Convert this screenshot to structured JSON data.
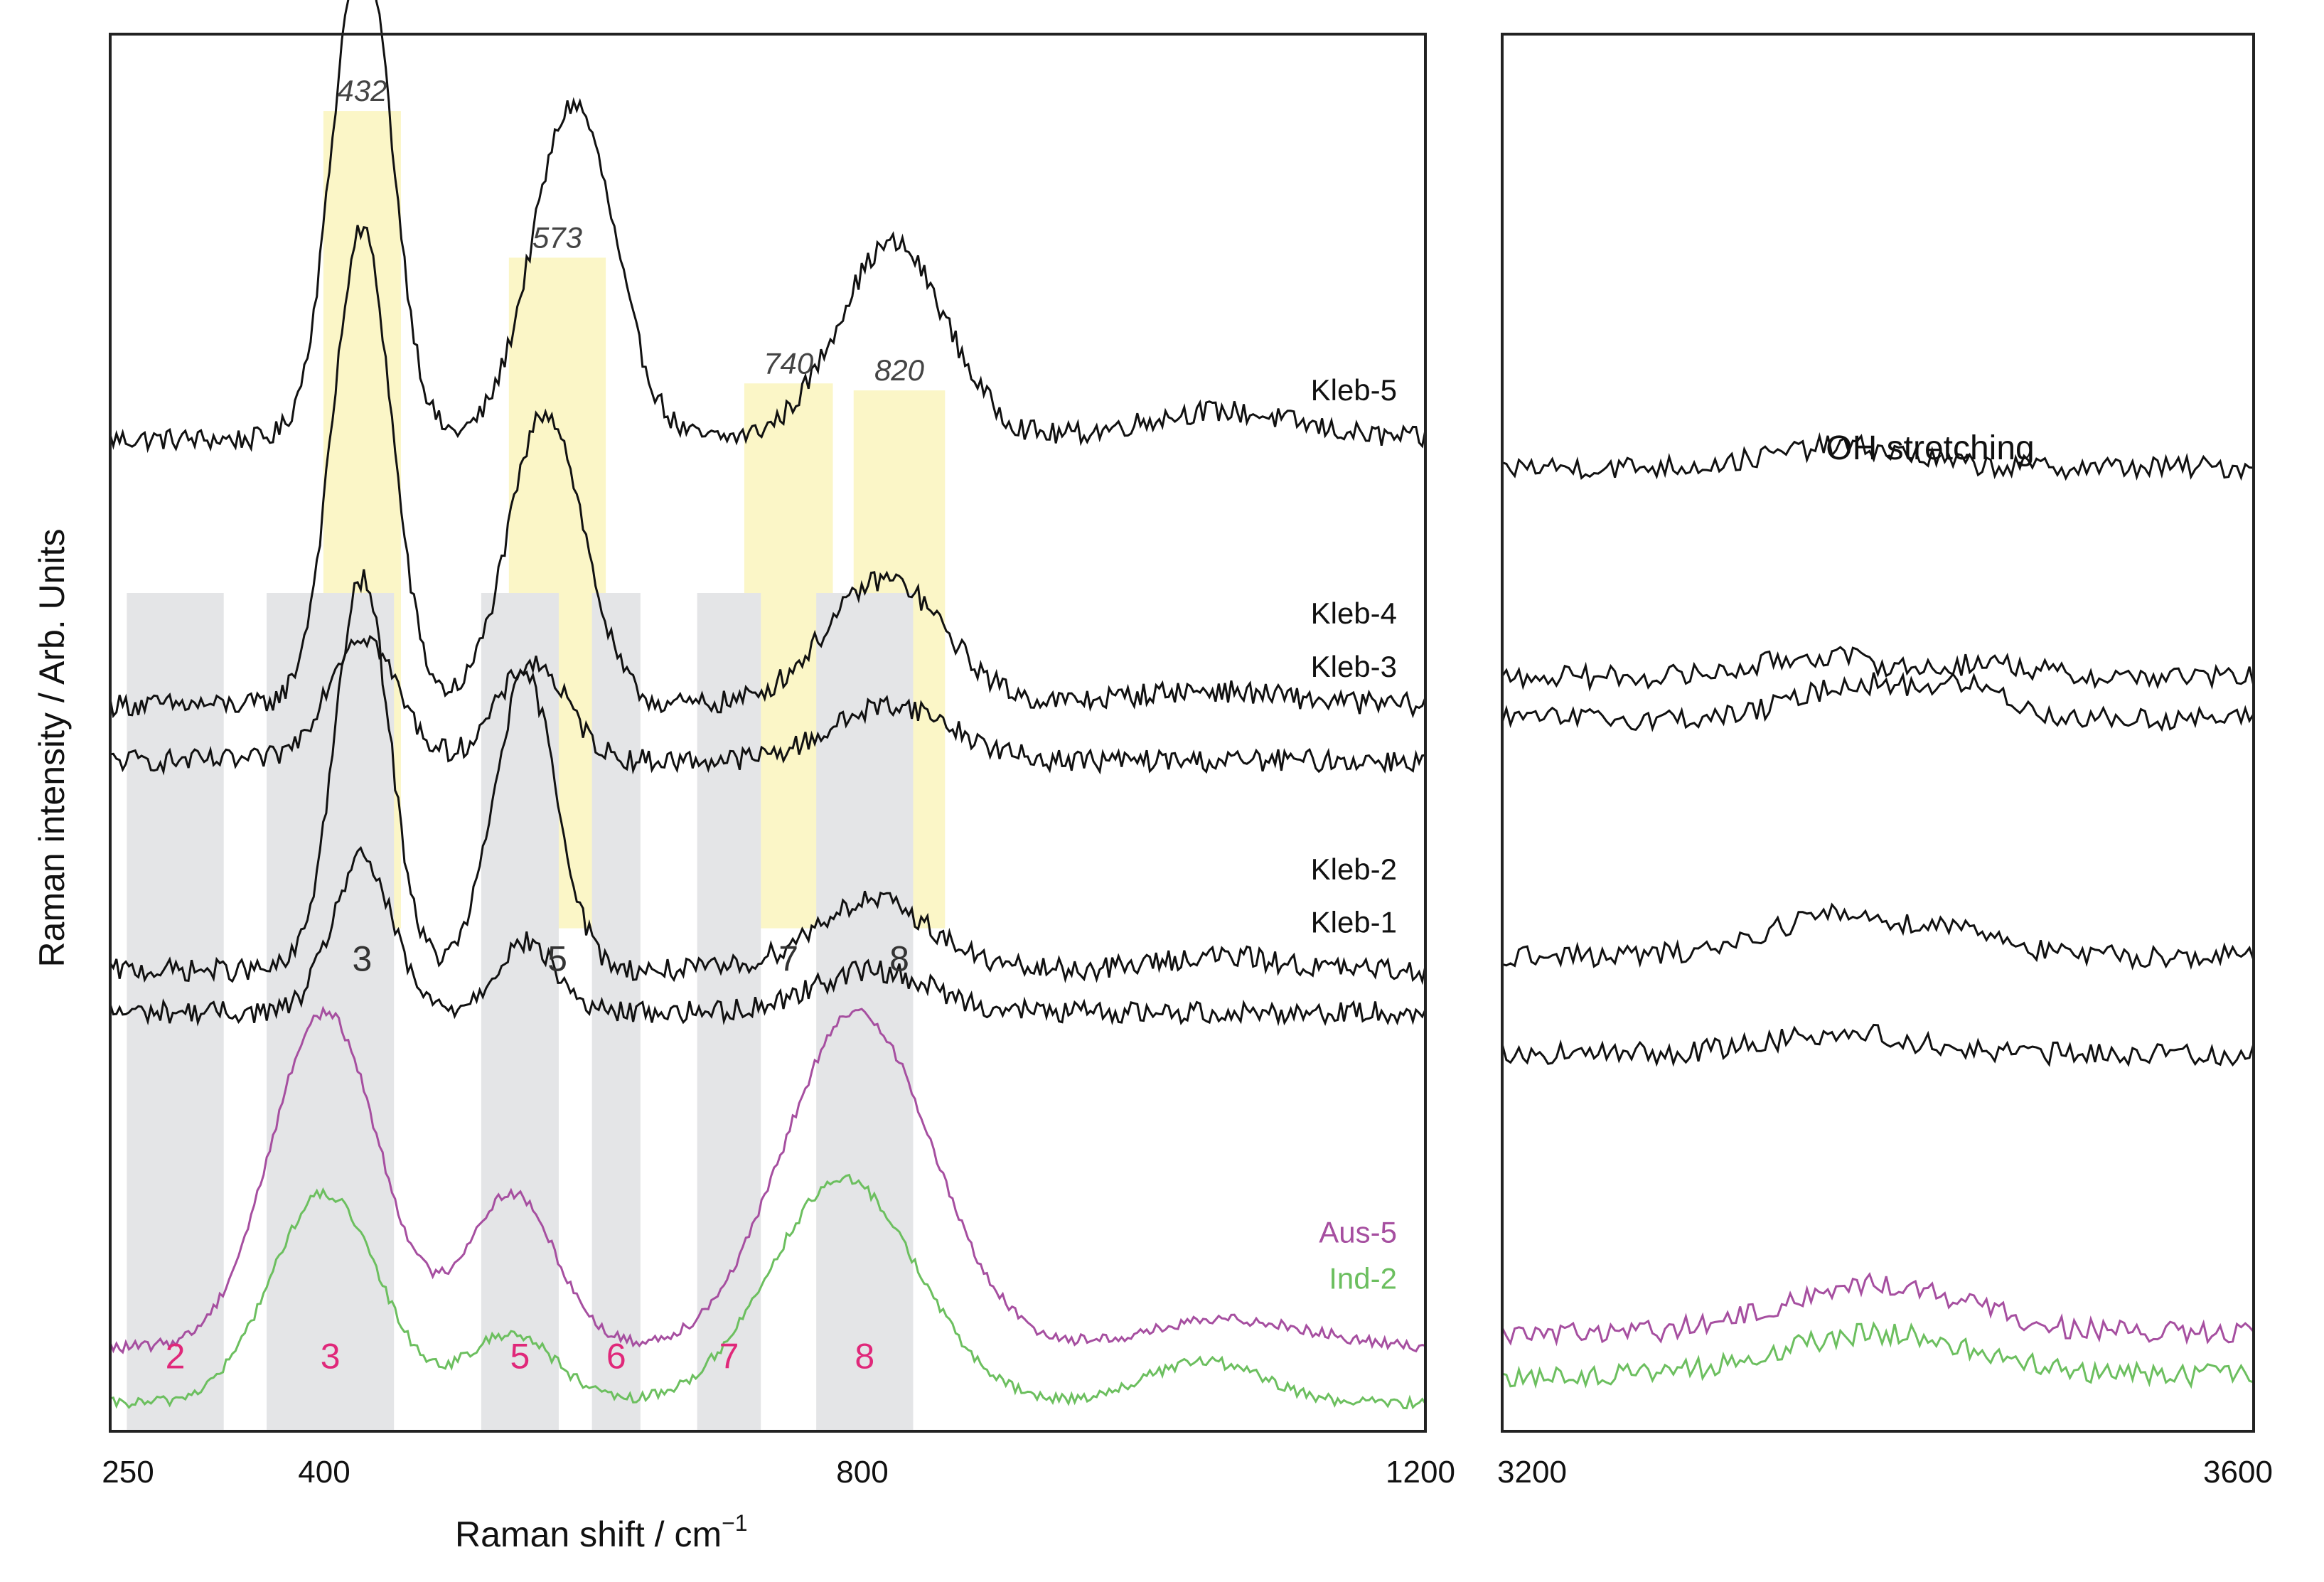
{
  "chart_data": {
    "type": "line",
    "ylabel": "Raman intensity / Arb. Units",
    "xlabel": "Raman shift / cm",
    "xlabel_superscript": "−1",
    "panels": [
      {
        "name": "fingerprint",
        "xlim": [
          250,
          1200
        ],
        "xticks": [
          "250",
          "400",
          "800",
          "1200"
        ]
      },
      {
        "name": "oh",
        "title": "OH stretching",
        "xlim": [
          3200,
          3600
        ],
        "xticks": [
          "3200",
          "3600"
        ]
      }
    ],
    "highlight_bands": [
      {
        "center": 432,
        "label": "432",
        "number": "3"
      },
      {
        "center": 573,
        "label": "573",
        "number": "5"
      },
      {
        "center": 740,
        "label": "740",
        "number": "7"
      },
      {
        "center": 820,
        "label": "820",
        "number": "8"
      }
    ],
    "reference_bands": [
      {
        "number": "2",
        "range": [
          262,
          332
        ]
      },
      {
        "number": "3",
        "range": [
          363,
          455
        ]
      },
      {
        "number": "5",
        "range": [
          518,
          574
        ]
      },
      {
        "number": "6",
        "range": [
          598,
          633
        ]
      },
      {
        "number": "7",
        "range": [
          674,
          720
        ]
      },
      {
        "number": "8",
        "range": [
          760,
          830
        ]
      }
    ],
    "series": [
      {
        "name": "Kleb-5",
        "color": "#111111",
        "baseline": 0.71,
        "offset_oh": 0.69,
        "peaks": [
          [
            432,
            0.36,
            30
          ],
          [
            585,
            0.24,
            42
          ],
          [
            815,
            0.14,
            55
          ],
          [
            1050,
            0.02,
            80
          ]
        ],
        "oh_peaks": [
          [
            3380,
            0.015,
            50
          ]
        ]
      },
      {
        "name": "Kleb-4",
        "color": "#111111",
        "baseline": 0.52,
        "offset_oh": 0.54,
        "peaks": [
          [
            432,
            0.34,
            30
          ],
          [
            565,
            0.21,
            38
          ],
          [
            810,
            0.09,
            60
          ],
          [
            1040,
            0.01,
            80
          ]
        ],
        "oh_peaks": [
          [
            3370,
            0.015,
            45
          ],
          [
            3460,
            0.01,
            30
          ]
        ]
      },
      {
        "name": "Kleb-3",
        "color": "#111111",
        "baseline": 0.48,
        "offset_oh": 0.51,
        "peaks": [
          [
            432,
            0.09,
            35
          ],
          [
            555,
            0.07,
            35
          ],
          [
            815,
            0.04,
            60
          ]
        ],
        "oh_peaks": [
          [
            3390,
            0.025,
            45
          ],
          [
            3450,
            0.02,
            30
          ]
        ]
      },
      {
        "name": "Kleb-2",
        "color": "#111111",
        "baseline": 0.33,
        "offset_oh": 0.34,
        "peaks": [
          [
            432,
            0.28,
            28
          ],
          [
            550,
            0.21,
            32
          ],
          [
            800,
            0.05,
            60
          ],
          [
            1050,
            0.01,
            60
          ]
        ],
        "oh_peaks": [
          [
            3380,
            0.03,
            55
          ],
          [
            3450,
            0.015,
            30
          ]
        ]
      },
      {
        "name": "Kleb-1",
        "color": "#111111",
        "baseline": 0.3,
        "offset_oh": 0.27,
        "peaks": [
          [
            432,
            0.11,
            30
          ],
          [
            550,
            0.05,
            30
          ],
          [
            800,
            0.03,
            60
          ]
        ],
        "oh_peaks": [
          [
            3380,
            0.015,
            55
          ]
        ]
      },
      {
        "name": "Aus-5",
        "color": "#a64fa0",
        "baseline": 0.06,
        "offset_oh": 0.07,
        "peaks": [
          [
            405,
            0.24,
            55
          ],
          [
            540,
            0.11,
            45
          ],
          [
            790,
            0.24,
            75
          ],
          [
            1060,
            0.02,
            80
          ]
        ],
        "oh_peaks": [
          [
            3400,
            0.035,
            70
          ]
        ]
      },
      {
        "name": "Ind-2",
        "color": "#6cbf5f",
        "baseline": 0.02,
        "offset_oh": 0.04,
        "peaks": [
          [
            405,
            0.15,
            55
          ],
          [
            540,
            0.05,
            45
          ],
          [
            780,
            0.16,
            75
          ],
          [
            1040,
            0.03,
            60
          ]
        ],
        "oh_peaks": [
          [
            3400,
            0.03,
            70
          ]
        ]
      }
    ]
  }
}
